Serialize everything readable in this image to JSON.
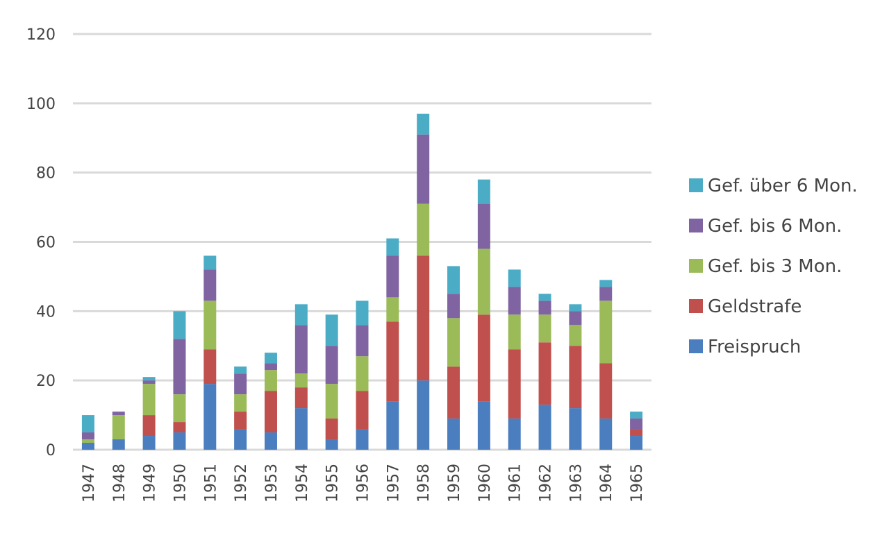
{
  "chart_data": {
    "type": "bar",
    "stacked": true,
    "title": "",
    "xlabel": "",
    "ylabel": "",
    "ylim": [
      0,
      120
    ],
    "yticks": [
      0,
      20,
      40,
      60,
      80,
      100,
      120
    ],
    "grid": true,
    "legend_position": "right",
    "categories": [
      "1947",
      "1948",
      "1949",
      "1950",
      "1951",
      "1952",
      "1953",
      "1954",
      "1955",
      "1956",
      "1957",
      "1958",
      "1959",
      "1960",
      "1961",
      "1962",
      "1963",
      "1964",
      "1965"
    ],
    "series": [
      {
        "name": "Freispruch",
        "color": "#4a7ebf",
        "values": [
          2,
          3,
          4,
          5,
          19,
          6,
          5,
          12,
          3,
          6,
          14,
          20,
          9,
          14,
          9,
          13,
          12,
          9,
          4
        ]
      },
      {
        "name": "Geldstrafe",
        "color": "#c0504d",
        "values": [
          0,
          0,
          6,
          3,
          10,
          5,
          12,
          6,
          6,
          11,
          23,
          36,
          15,
          25,
          20,
          18,
          18,
          16,
          2
        ]
      },
      {
        "name": "Gef. bis 3 Mon.",
        "color": "#9bbb59",
        "values": [
          1,
          7,
          9,
          8,
          14,
          5,
          6,
          4,
          10,
          10,
          7,
          15,
          14,
          19,
          10,
          8,
          6,
          18,
          0
        ]
      },
      {
        "name": "Gef. bis 6 Mon.",
        "color": "#8064a2",
        "values": [
          2,
          1,
          1,
          16,
          9,
          6,
          2,
          14,
          11,
          9,
          12,
          20,
          7,
          13,
          8,
          4,
          4,
          4,
          3
        ]
      },
      {
        "name": "Gef. über 6 Mon.",
        "color": "#4bacc6",
        "values": [
          5,
          0,
          1,
          8,
          4,
          2,
          3,
          6,
          9,
          7,
          5,
          6,
          8,
          7,
          5,
          2,
          2,
          2,
          2
        ]
      }
    ]
  }
}
